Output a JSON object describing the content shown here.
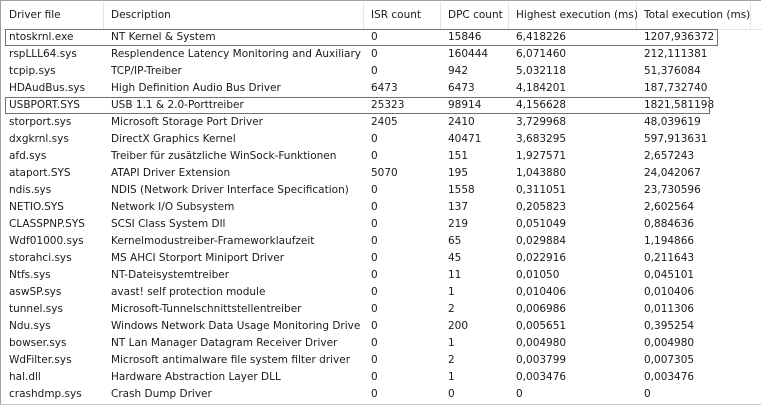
{
  "columns": [
    "Driver file",
    "Description",
    "ISR count",
    "DPC count",
    "Highest execution (ms)",
    "Total execution (ms)"
  ],
  "accent_color": "#3a7fb5",
  "rows": [
    {
      "file": "ntoskrnl.exe",
      "desc": "NT Kernel & System",
      "isr": "0",
      "dpc": "15846",
      "highest": "6,418226",
      "total": "1207,936372",
      "highlighted": true
    },
    {
      "file": "rspLLL64.sys",
      "desc": "Resplendence Latency Monitoring and Auxiliary ...",
      "isr": "0",
      "dpc": "160444",
      "highest": "6,071460",
      "total": "212,111381"
    },
    {
      "file": "tcpip.sys",
      "desc": "TCP/IP-Treiber",
      "isr": "0",
      "dpc": "942",
      "highest": "5,032118",
      "total": "51,376084"
    },
    {
      "file": "HDAudBus.sys",
      "desc": "High Definition Audio Bus Driver",
      "isr": "6473",
      "dpc": "6473",
      "highest": "4,184201",
      "total": "187,732740"
    },
    {
      "file": "USBPORT.SYS",
      "desc": "USB 1.1 & 2.0-Porttreiber",
      "isr": "25323",
      "dpc": "98914",
      "highest": "4,156628",
      "total": "1821,581198",
      "highlighted": true
    },
    {
      "file": "storport.sys",
      "desc": "Microsoft Storage Port Driver",
      "isr": "2405",
      "dpc": "2410",
      "highest": "3,729968",
      "total": "48,039619"
    },
    {
      "file": "dxgkrnl.sys",
      "desc": "DirectX Graphics Kernel",
      "isr": "0",
      "dpc": "40471",
      "highest": "3,683295",
      "total": "597,913631"
    },
    {
      "file": "afd.sys",
      "desc": "Treiber für zusätzliche WinSock-Funktionen",
      "isr": "0",
      "dpc": "151",
      "highest": "1,927571",
      "total": "2,657243"
    },
    {
      "file": "ataport.SYS",
      "desc": "ATAPI Driver Extension",
      "isr": "5070",
      "dpc": "195",
      "highest": "1,043880",
      "total": "24,042067"
    },
    {
      "file": "ndis.sys",
      "desc": "NDIS (Network Driver Interface Specification)",
      "isr": "0",
      "dpc": "1558",
      "highest": "0,311051",
      "total": "23,730596"
    },
    {
      "file": "NETIO.SYS",
      "desc": "Network I/O Subsystem",
      "isr": "0",
      "dpc": "137",
      "highest": "0,205823",
      "total": "2,602564"
    },
    {
      "file": "CLASSPNP.SYS",
      "desc": "SCSI Class System Dll",
      "isr": "0",
      "dpc": "219",
      "highest": "0,051049",
      "total": "0,884636"
    },
    {
      "file": "Wdf01000.sys",
      "desc": "Kernelmodustreiber-Frameworklaufzeit",
      "isr": "0",
      "dpc": "65",
      "highest": "0,029884",
      "total": "1,194866"
    },
    {
      "file": "storahci.sys",
      "desc": "MS AHCI Storport Miniport Driver",
      "isr": "0",
      "dpc": "45",
      "highest": "0,022916",
      "total": "0,211643"
    },
    {
      "file": "Ntfs.sys",
      "desc": "NT-Dateisystemtreiber",
      "isr": "0",
      "dpc": "11",
      "highest": "0,01050",
      "total": "0,045101"
    },
    {
      "file": "aswSP.sys",
      "desc": "avast! self protection module",
      "isr": "0",
      "dpc": "1",
      "highest": "0,010406",
      "total": "0,010406"
    },
    {
      "file": "tunnel.sys",
      "desc": "Microsoft-Tunnelschnittstellentreiber",
      "isr": "0",
      "dpc": "2",
      "highest": "0,006986",
      "total": "0,011306"
    },
    {
      "file": "Ndu.sys",
      "desc": "Windows Network Data Usage Monitoring Driver",
      "isr": "0",
      "dpc": "200",
      "highest": "0,005651",
      "total": "0,395254"
    },
    {
      "file": "bowser.sys",
      "desc": "NT Lan Manager Datagram Receiver Driver",
      "isr": "0",
      "dpc": "1",
      "highest": "0,004980",
      "total": "0,004980"
    },
    {
      "file": "WdFilter.sys",
      "desc": "Microsoft antimalware file system filter driver",
      "isr": "0",
      "dpc": "2",
      "highest": "0,003799",
      "total": "0,007305"
    },
    {
      "file": "hal.dll",
      "desc": "Hardware Abstraction Layer DLL",
      "isr": "0",
      "dpc": "1",
      "highest": "0,003476",
      "total": "0,003476"
    },
    {
      "file": "crashdmp.sys",
      "desc": "Crash Dump Driver",
      "isr": "0",
      "dpc": "0",
      "highest": "0",
      "total": "0"
    }
  ]
}
